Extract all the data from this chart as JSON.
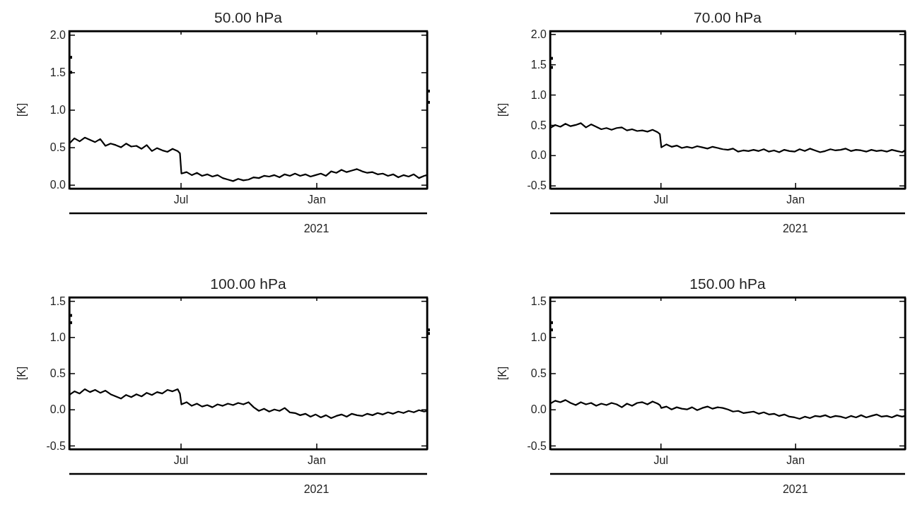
{
  "chart_data": [
    {
      "type": "line",
      "title": "50.00 hPa",
      "ylabel": "[K]",
      "annotations": [
        "2021"
      ],
      "xlim": [
        "2020-02-01",
        "2021-05-31"
      ],
      "xticks": [
        {
          "value": "2020-07-01",
          "label": "Jul"
        },
        {
          "value": "2021-01-01",
          "label": "Jan"
        }
      ],
      "ylim": [
        -0.05,
        2.05
      ],
      "yticks": [
        {
          "value": 0,
          "label": "0.0"
        },
        0.5,
        {
          "value": 1,
          "label": "1.0"
        },
        1.5,
        {
          "value": 2,
          "label": "2.0"
        }
      ],
      "grid": false,
      "x": [
        "2020-02-01",
        "2020-02-08",
        "2020-02-15",
        "2020-02-22",
        "2020-02-29",
        "2020-03-07",
        "2020-03-14",
        "2020-03-21",
        "2020-03-28",
        "2020-04-04",
        "2020-04-11",
        "2020-04-18",
        "2020-04-25",
        "2020-05-02",
        "2020-05-09",
        "2020-05-16",
        "2020-05-23",
        "2020-05-30",
        "2020-06-06",
        "2020-06-13",
        "2020-06-20",
        "2020-06-27",
        "2020-06-30",
        "2020-07-02",
        "2020-07-09",
        "2020-07-16",
        "2020-07-23",
        "2020-07-30",
        "2020-08-06",
        "2020-08-13",
        "2020-08-20",
        "2020-08-27",
        "2020-09-03",
        "2020-09-10",
        "2020-09-17",
        "2020-09-24",
        "2020-10-01",
        "2020-10-08",
        "2020-10-15",
        "2020-10-22",
        "2020-10-29",
        "2020-11-05",
        "2020-11-12",
        "2020-11-19",
        "2020-11-26",
        "2020-12-03",
        "2020-12-10",
        "2020-12-17",
        "2020-12-24",
        "2020-12-31",
        "2021-01-07",
        "2021-01-14",
        "2021-01-21",
        "2021-01-28",
        "2021-02-04",
        "2021-02-11",
        "2021-02-18",
        "2021-02-25",
        "2021-03-04",
        "2021-03-11",
        "2021-03-18",
        "2021-03-25",
        "2021-04-01",
        "2021-04-08",
        "2021-04-15",
        "2021-04-22",
        "2021-04-29",
        "2021-05-06",
        "2021-05-13",
        "2021-05-20",
        "2021-05-27",
        "2021-05-31"
      ],
      "series": [
        {
          "color": "#000000",
          "values": [
            0.55,
            0.62,
            0.58,
            0.63,
            0.6,
            0.57,
            0.61,
            0.52,
            0.55,
            0.53,
            0.5,
            0.55,
            0.51,
            0.52,
            0.48,
            0.53,
            0.45,
            0.49,
            0.46,
            0.44,
            0.48,
            0.45,
            0.42,
            0.15,
            0.17,
            0.13,
            0.16,
            0.12,
            0.14,
            0.11,
            0.13,
            0.09,
            0.07,
            0.05,
            0.08,
            0.06,
            0.07,
            0.1,
            0.09,
            0.12,
            0.11,
            0.13,
            0.1,
            0.14,
            0.12,
            0.15,
            0.12,
            0.14,
            0.11,
            0.13,
            0.15,
            0.12,
            0.18,
            0.16,
            0.2,
            0.17,
            0.19,
            0.21,
            0.18,
            0.16,
            0.17,
            0.14,
            0.15,
            0.12,
            0.14,
            0.1,
            0.13,
            0.11,
            0.14,
            0.09,
            0.12,
            0.13
          ]
        },
        {
          "type": "scatter",
          "color": "#000000",
          "marker": "square",
          "x": [
            "2020-02-01",
            "2020-02-01",
            "2021-05-31",
            "2021-05-31"
          ],
          "values": [
            1.7,
            1.5,
            1.25,
            1.1
          ]
        }
      ]
    },
    {
      "type": "line",
      "title": "70.00 hPa",
      "ylabel": "[K]",
      "annotations": [
        "2021"
      ],
      "xlim": [
        "2020-02-01",
        "2021-05-31"
      ],
      "xticks": [
        {
          "value": "2020-07-01",
          "label": "Jul"
        },
        {
          "value": "2021-01-01",
          "label": "Jan"
        }
      ],
      "ylim": [
        -0.55,
        2.05
      ],
      "yticks": [
        -0.5,
        {
          "value": 0,
          "label": "0.0"
        },
        0.5,
        {
          "value": 1,
          "label": "1.0"
        },
        1.5,
        {
          "value": 2,
          "label": "2.0"
        }
      ],
      "grid": false,
      "x": [
        "2020-02-01",
        "2020-02-08",
        "2020-02-15",
        "2020-02-22",
        "2020-02-29",
        "2020-03-07",
        "2020-03-14",
        "2020-03-21",
        "2020-03-28",
        "2020-04-04",
        "2020-04-11",
        "2020-04-18",
        "2020-04-25",
        "2020-05-02",
        "2020-05-09",
        "2020-05-16",
        "2020-05-23",
        "2020-05-30",
        "2020-06-06",
        "2020-06-13",
        "2020-06-20",
        "2020-06-27",
        "2020-06-30",
        "2020-07-02",
        "2020-07-09",
        "2020-07-16",
        "2020-07-23",
        "2020-07-30",
        "2020-08-06",
        "2020-08-13",
        "2020-08-20",
        "2020-08-27",
        "2020-09-03",
        "2020-09-10",
        "2020-09-17",
        "2020-09-24",
        "2020-10-01",
        "2020-10-08",
        "2020-10-15",
        "2020-10-22",
        "2020-10-29",
        "2020-11-05",
        "2020-11-12",
        "2020-11-19",
        "2020-11-26",
        "2020-12-03",
        "2020-12-10",
        "2020-12-17",
        "2020-12-24",
        "2020-12-31",
        "2021-01-07",
        "2021-01-14",
        "2021-01-21",
        "2021-01-28",
        "2021-02-04",
        "2021-02-11",
        "2021-02-18",
        "2021-02-25",
        "2021-03-04",
        "2021-03-11",
        "2021-03-18",
        "2021-03-25",
        "2021-04-01",
        "2021-04-08",
        "2021-04-15",
        "2021-04-22",
        "2021-04-29",
        "2021-05-06",
        "2021-05-13",
        "2021-05-20",
        "2021-05-27",
        "2021-05-31"
      ],
      "series": [
        {
          "color": "#000000",
          "values": [
            0.45,
            0.5,
            0.47,
            0.52,
            0.48,
            0.5,
            0.53,
            0.46,
            0.51,
            0.47,
            0.43,
            0.45,
            0.42,
            0.45,
            0.46,
            0.41,
            0.43,
            0.4,
            0.41,
            0.39,
            0.42,
            0.38,
            0.35,
            0.13,
            0.18,
            0.14,
            0.16,
            0.12,
            0.14,
            0.12,
            0.15,
            0.13,
            0.11,
            0.14,
            0.12,
            0.1,
            0.09,
            0.11,
            0.06,
            0.08,
            0.07,
            0.09,
            0.07,
            0.1,
            0.06,
            0.08,
            0.05,
            0.09,
            0.07,
            0.06,
            0.1,
            0.07,
            0.11,
            0.08,
            0.05,
            0.07,
            0.1,
            0.08,
            0.09,
            0.11,
            0.07,
            0.09,
            0.08,
            0.06,
            0.09,
            0.07,
            0.08,
            0.06,
            0.09,
            0.07,
            0.05,
            0.08
          ]
        },
        {
          "type": "scatter",
          "color": "#000000",
          "marker": "square",
          "x": [
            "2020-02-01",
            "2020-02-01"
          ],
          "values": [
            1.6,
            1.45
          ]
        }
      ]
    },
    {
      "type": "line",
      "title": "100.00 hPa",
      "ylabel": "[K]",
      "annotations": [
        "2021"
      ],
      "xlim": [
        "2020-02-01",
        "2021-05-31"
      ],
      "xticks": [
        {
          "value": "2020-07-01",
          "label": "Jul"
        },
        {
          "value": "2021-01-01",
          "label": "Jan"
        }
      ],
      "ylim": [
        -0.55,
        1.55
      ],
      "yticks": [
        -0.5,
        {
          "value": 0,
          "label": "0.0"
        },
        0.5,
        {
          "value": 1,
          "label": "1.0"
        },
        1.5
      ],
      "grid": false,
      "x": [
        "2020-02-01",
        "2020-02-08",
        "2020-02-15",
        "2020-02-22",
        "2020-02-29",
        "2020-03-07",
        "2020-03-14",
        "2020-03-21",
        "2020-03-28",
        "2020-04-04",
        "2020-04-11",
        "2020-04-18",
        "2020-04-25",
        "2020-05-02",
        "2020-05-09",
        "2020-05-16",
        "2020-05-23",
        "2020-05-30",
        "2020-06-06",
        "2020-06-13",
        "2020-06-20",
        "2020-06-27",
        "2020-06-30",
        "2020-07-02",
        "2020-07-09",
        "2020-07-16",
        "2020-07-23",
        "2020-07-30",
        "2020-08-06",
        "2020-08-13",
        "2020-08-20",
        "2020-08-27",
        "2020-09-03",
        "2020-09-10",
        "2020-09-17",
        "2020-09-24",
        "2020-10-01",
        "2020-10-08",
        "2020-10-15",
        "2020-10-22",
        "2020-10-29",
        "2020-11-05",
        "2020-11-12",
        "2020-11-19",
        "2020-11-26",
        "2020-12-03",
        "2020-12-10",
        "2020-12-17",
        "2020-12-24",
        "2020-12-31",
        "2021-01-07",
        "2021-01-14",
        "2021-01-21",
        "2021-01-28",
        "2021-02-04",
        "2021-02-11",
        "2021-02-18",
        "2021-02-25",
        "2021-03-04",
        "2021-03-11",
        "2021-03-18",
        "2021-03-25",
        "2021-04-01",
        "2021-04-08",
        "2021-04-15",
        "2021-04-22",
        "2021-04-29",
        "2021-05-06",
        "2021-05-13",
        "2021-05-20",
        "2021-05-27",
        "2021-05-31"
      ],
      "series": [
        {
          "color": "#000000",
          "values": [
            0.2,
            0.25,
            0.22,
            0.28,
            0.24,
            0.27,
            0.23,
            0.26,
            0.21,
            0.18,
            0.15,
            0.2,
            0.17,
            0.21,
            0.18,
            0.23,
            0.2,
            0.24,
            0.22,
            0.27,
            0.25,
            0.28,
            0.22,
            0.07,
            0.1,
            0.05,
            0.08,
            0.04,
            0.06,
            0.03,
            0.07,
            0.05,
            0.08,
            0.06,
            0.09,
            0.07,
            0.1,
            0.03,
            -0.02,
            0.01,
            -0.03,
            0.0,
            -0.02,
            0.02,
            -0.04,
            -0.05,
            -0.08,
            -0.06,
            -0.1,
            -0.07,
            -0.11,
            -0.08,
            -0.12,
            -0.09,
            -0.07,
            -0.1,
            -0.06,
            -0.08,
            -0.09,
            -0.06,
            -0.08,
            -0.05,
            -0.07,
            -0.04,
            -0.06,
            -0.03,
            -0.05,
            -0.02,
            -0.04,
            -0.01,
            -0.03,
            -0.02
          ]
        },
        {
          "type": "scatter",
          "color": "#000000",
          "marker": "square",
          "x": [
            "2020-02-01",
            "2020-02-01",
            "2021-05-31",
            "2021-05-31"
          ],
          "values": [
            1.3,
            1.2,
            1.1,
            1.05
          ]
        }
      ]
    },
    {
      "type": "line",
      "title": "150.00 hPa",
      "ylabel": "[K]",
      "annotations": [
        "2021"
      ],
      "xlim": [
        "2020-02-01",
        "2021-05-31"
      ],
      "xticks": [
        {
          "value": "2020-07-01",
          "label": "Jul"
        },
        {
          "value": "2021-01-01",
          "label": "Jan"
        }
      ],
      "ylim": [
        -0.55,
        1.55
      ],
      "yticks": [
        -0.5,
        {
          "value": 0,
          "label": "0.0"
        },
        0.5,
        {
          "value": 1,
          "label": "1.0"
        },
        1.5
      ],
      "grid": false,
      "x": [
        "2020-02-01",
        "2020-02-08",
        "2020-02-15",
        "2020-02-22",
        "2020-02-29",
        "2020-03-07",
        "2020-03-14",
        "2020-03-21",
        "2020-03-28",
        "2020-04-04",
        "2020-04-11",
        "2020-04-18",
        "2020-04-25",
        "2020-05-02",
        "2020-05-09",
        "2020-05-16",
        "2020-05-23",
        "2020-05-30",
        "2020-06-06",
        "2020-06-13",
        "2020-06-20",
        "2020-06-27",
        "2020-06-30",
        "2020-07-02",
        "2020-07-09",
        "2020-07-16",
        "2020-07-23",
        "2020-07-30",
        "2020-08-06",
        "2020-08-13",
        "2020-08-20",
        "2020-08-27",
        "2020-09-03",
        "2020-09-10",
        "2020-09-17",
        "2020-09-24",
        "2020-10-01",
        "2020-10-08",
        "2020-10-15",
        "2020-10-22",
        "2020-10-29",
        "2020-11-05",
        "2020-11-12",
        "2020-11-19",
        "2020-11-26",
        "2020-12-03",
        "2020-12-10",
        "2020-12-17",
        "2020-12-24",
        "2020-12-31",
        "2021-01-07",
        "2021-01-14",
        "2021-01-21",
        "2021-01-28",
        "2021-02-04",
        "2021-02-11",
        "2021-02-18",
        "2021-02-25",
        "2021-03-04",
        "2021-03-11",
        "2021-03-18",
        "2021-03-25",
        "2021-04-01",
        "2021-04-08",
        "2021-04-15",
        "2021-04-22",
        "2021-04-29",
        "2021-05-06",
        "2021-05-13",
        "2021-05-20",
        "2021-05-27",
        "2021-05-31"
      ],
      "series": [
        {
          "color": "#000000",
          "values": [
            0.08,
            0.12,
            0.1,
            0.13,
            0.09,
            0.06,
            0.1,
            0.07,
            0.09,
            0.05,
            0.08,
            0.06,
            0.09,
            0.07,
            0.03,
            0.08,
            0.05,
            0.09,
            0.1,
            0.07,
            0.11,
            0.08,
            0.06,
            0.02,
            0.04,
            0.0,
            0.03,
            0.01,
            0.0,
            0.03,
            -0.01,
            0.02,
            0.04,
            0.01,
            0.03,
            0.02,
            0.0,
            -0.03,
            -0.02,
            -0.05,
            -0.04,
            -0.03,
            -0.06,
            -0.04,
            -0.07,
            -0.06,
            -0.09,
            -0.07,
            -0.1,
            -0.11,
            -0.13,
            -0.1,
            -0.12,
            -0.09,
            -0.1,
            -0.08,
            -0.11,
            -0.09,
            -0.1,
            -0.12,
            -0.09,
            -0.11,
            -0.08,
            -0.11,
            -0.09,
            -0.07,
            -0.1,
            -0.09,
            -0.11,
            -0.08,
            -0.1,
            -0.09
          ]
        },
        {
          "type": "scatter",
          "color": "#000000",
          "marker": "square",
          "x": [
            "2020-02-01",
            "2020-02-01"
          ],
          "values": [
            1.2,
            1.1
          ]
        }
      ]
    }
  ]
}
